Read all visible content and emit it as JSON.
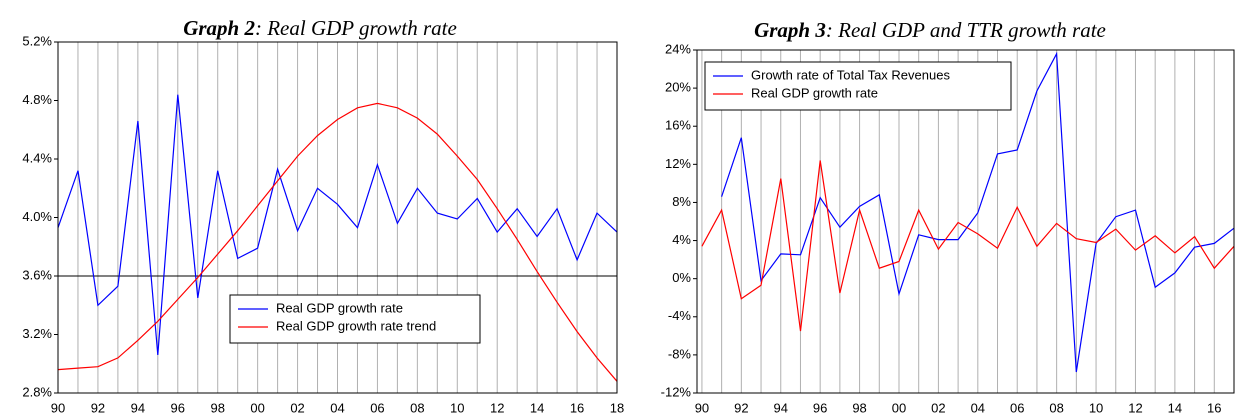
{
  "chart_data": [
    {
      "type": "line",
      "title": "Graph 2: Real GDP growth rate",
      "categories": [
        "90",
        null,
        "92",
        null,
        "94",
        null,
        "96",
        null,
        "98",
        null,
        "00",
        null,
        "02",
        null,
        "04",
        null,
        "06",
        null,
        "08",
        null,
        "10",
        null,
        "12",
        null,
        "14",
        null,
        "16",
        null,
        "18"
      ],
      "series": [
        {
          "name": "Real GDP growth rate",
          "color": "#0000ff",
          "values": [
            3.93,
            4.32,
            3.4,
            3.53,
            4.66,
            3.06,
            4.84,
            3.45,
            4.32,
            3.72,
            3.79,
            4.33,
            3.91,
            4.2,
            4.09,
            3.93,
            4.36,
            3.96,
            4.2,
            4.03,
            3.99,
            4.13,
            3.9,
            4.06,
            3.87,
            4.06,
            3.71,
            4.03,
            3.9
          ]
        },
        {
          "name": "Real GDP growth rate trend",
          "color": "#ff0000",
          "values": [
            2.96,
            2.97,
            2.98,
            3.04,
            3.16,
            3.29,
            3.44,
            3.59,
            3.75,
            3.91,
            4.08,
            4.25,
            4.42,
            4.56,
            4.67,
            4.75,
            4.78,
            4.75,
            4.68,
            4.57,
            4.42,
            4.26,
            4.06,
            3.85,
            3.63,
            3.42,
            3.22,
            3.04,
            2.88
          ]
        }
      ],
      "ylim": [
        2.8,
        5.2
      ],
      "yticks": [
        {
          "value": 2.8,
          "label": "2.8%"
        },
        {
          "value": 3.2,
          "label": "3.2%"
        },
        {
          "value": 3.6,
          "label": "3.6%"
        },
        {
          "value": 4.0,
          "label": "4.0%"
        },
        {
          "value": 4.4,
          "label": "4.4%"
        },
        {
          "value": 4.8,
          "label": "4.8%"
        },
        {
          "value": 5.2,
          "label": "5.2%"
        }
      ],
      "hline": 3.6,
      "grid": "x",
      "legend": "lower center"
    },
    {
      "type": "line",
      "title": "Graph 3: Real GDP and TTR growth rate",
      "categories": [
        "90",
        null,
        "92",
        null,
        "94",
        null,
        "96",
        null,
        "98",
        null,
        "00",
        null,
        "02",
        null,
        "04",
        null,
        "06",
        null,
        "08",
        null,
        "10",
        null,
        "12",
        null,
        "14",
        null,
        "16",
        null
      ],
      "series": [
        {
          "name": "Growth rate of Total Tax Revenues",
          "color": "#0000ff",
          "values": [
            null,
            8.6,
            14.8,
            -0.2,
            2.6,
            2.5,
            8.5,
            5.4,
            7.6,
            8.8,
            -1.6,
            4.6,
            4.1,
            4.1,
            6.9,
            13.1,
            13.5,
            19.7,
            23.6,
            -9.8,
            3.7,
            6.5,
            7.2,
            -0.9,
            0.6,
            3.3,
            3.7,
            5.3
          ]
        },
        {
          "name": "Real GDP growth rate",
          "color": "#ff0000",
          "values": [
            3.4,
            7.2,
            -2.1,
            -0.7,
            10.5,
            -5.5,
            12.4,
            -1.5,
            7.2,
            1.1,
            1.8,
            7.2,
            3.1,
            5.9,
            4.7,
            3.2,
            7.5,
            3.4,
            5.8,
            4.2,
            3.8,
            5.2,
            3.0,
            4.5,
            2.7,
            4.4,
            1.1,
            3.4
          ]
        }
      ],
      "ylim": [
        -12,
        24
      ],
      "yticks": [
        {
          "value": -12,
          "label": "-12%"
        },
        {
          "value": -8,
          "label": "-8%"
        },
        {
          "value": -4,
          "label": "-4%"
        },
        {
          "value": 0,
          "label": "0%"
        },
        {
          "value": 4,
          "label": "4%"
        },
        {
          "value": 8,
          "label": "8%"
        },
        {
          "value": 12,
          "label": "12%"
        },
        {
          "value": 16,
          "label": "16%"
        },
        {
          "value": 20,
          "label": "20%"
        },
        {
          "value": 24,
          "label": "24%"
        }
      ],
      "grid": "x",
      "legend": "upper left"
    }
  ]
}
